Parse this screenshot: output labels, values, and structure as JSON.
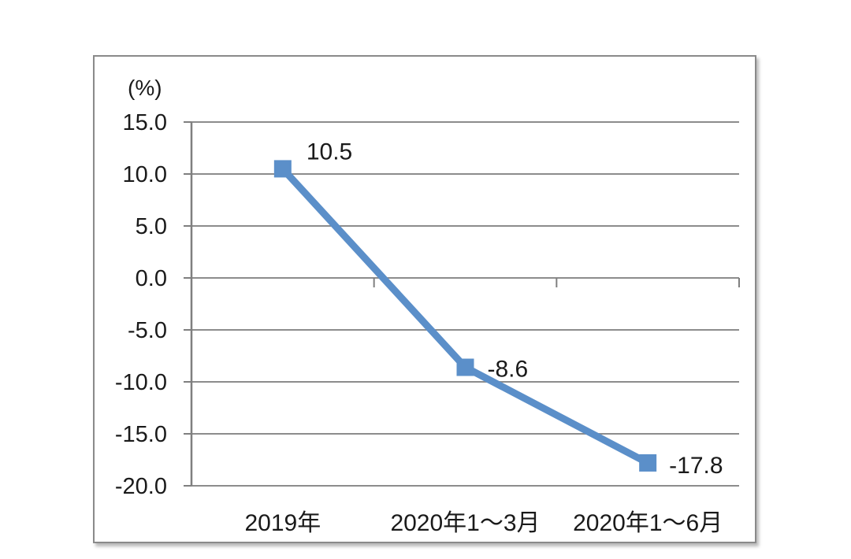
{
  "chart_data": {
    "type": "line",
    "title": "",
    "unit_label": "(%)",
    "categories": [
      "2019年",
      "2020年1～3月",
      "2020年1～6月"
    ],
    "values": [
      10.5,
      -8.6,
      -17.8
    ],
    "data_labels": [
      "10.5",
      "-8.6",
      "-17.8"
    ],
    "ytick_values": [
      15,
      10,
      5,
      0,
      -5,
      -10,
      -15,
      -20
    ],
    "ytick_labels": [
      "15.0",
      "10.0",
      "5.0",
      "0.0",
      "-5.0",
      "-10.0",
      "-15.0",
      "-20.0"
    ],
    "ylim": [
      -20,
      15
    ],
    "x_axis_crosses_at": 0,
    "grid": true,
    "legend": "none",
    "marker": "square",
    "colors": {
      "line": "#5B8FC9",
      "marker": "#5B8FC9",
      "grid": "#8C8C8C",
      "axis": "#7F7F7F",
      "text": "#1a1a1a",
      "frame": "#8a8a8a"
    }
  }
}
